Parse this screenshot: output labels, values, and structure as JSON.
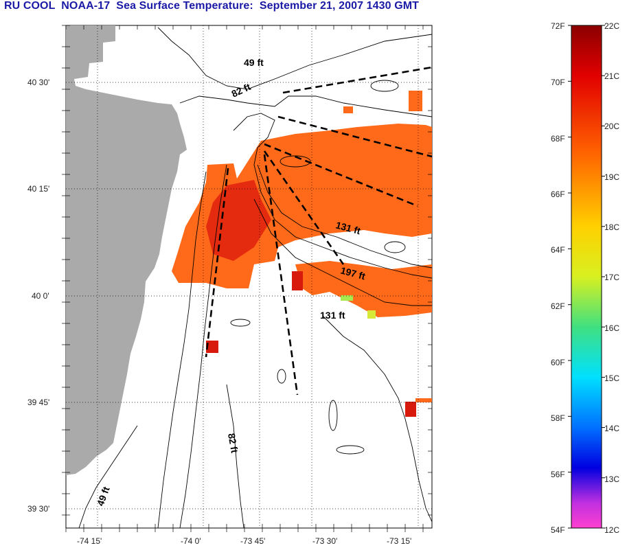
{
  "title": "RU COOL  NOAA-17  Sea Surface Temperature:  September 21, 2007 1430 GMT",
  "map": {
    "lat_labels": [
      "40 30'",
      "40 15'",
      "40 0'",
      "39 45'",
      "39 30'"
    ],
    "lon_labels": [
      "-74 15'",
      "-74 0'",
      "-73 45'",
      "-73 30'",
      "-73 15'"
    ],
    "depth_labels": [
      "49 ft",
      "82 ft",
      "131 ft",
      "197 ft",
      "131 ft",
      "82 ft",
      "49 ft"
    ],
    "colors": {
      "land": "#aaaaaa",
      "sst_warm": "#ff6a1a",
      "sst_hot": "#e52b0f",
      "track": "#000000"
    }
  },
  "colorbar": {
    "f_labels": [
      "72F",
      "70F",
      "68F",
      "66F",
      "64F",
      "62F",
      "60F",
      "58F",
      "56F",
      "54F"
    ],
    "c_labels": [
      "22C",
      "21C",
      "20C",
      "19C",
      "18C",
      "17C",
      "16C",
      "15C",
      "14C",
      "13C",
      "12C"
    ]
  }
}
